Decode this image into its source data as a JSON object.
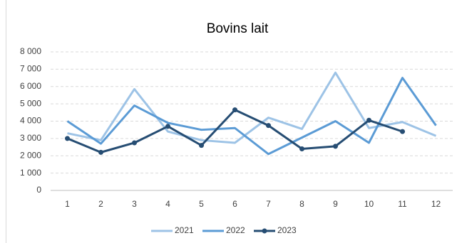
{
  "chart_data": {
    "type": "line",
    "title": "Bovins lait",
    "categories": [
      "1",
      "2",
      "3",
      "4",
      "5",
      "6",
      "7",
      "8",
      "9",
      "10",
      "11",
      "12"
    ],
    "series": [
      {
        "name": "2021",
        "color": "#9dc3e6",
        "values": [
          3300,
          2900,
          5850,
          3400,
          2900,
          2750,
          4200,
          3550,
          6800,
          3600,
          3950,
          3150
        ]
      },
      {
        "name": "2022",
        "color": "#5b9bd5",
        "values": [
          4000,
          2700,
          4900,
          3900,
          3500,
          3600,
          2100,
          3050,
          4000,
          2750,
          6500,
          3750
        ]
      },
      {
        "name": "2023",
        "color": "#264d73",
        "markers": true,
        "values": [
          3000,
          2200,
          2750,
          3700,
          2600,
          4650,
          3750,
          2400,
          2550,
          4050,
          3400,
          null
        ]
      }
    ],
    "ylim": [
      0,
      8000
    ],
    "yticks": [
      0,
      {
        "value": 1000,
        "label": "1 000"
      },
      {
        "value": 2000,
        "label": "2 000"
      },
      {
        "value": 3000,
        "label": "3 000"
      },
      {
        "value": 4000,
        "label": "4 000"
      },
      {
        "value": 5000,
        "label": "5 000"
      },
      {
        "value": 6000,
        "label": "6 000"
      },
      {
        "value": 7000,
        "label": "7 000"
      },
      {
        "value": 8000,
        "label": "8 000"
      }
    ],
    "grid": true,
    "legend": "bottom"
  }
}
